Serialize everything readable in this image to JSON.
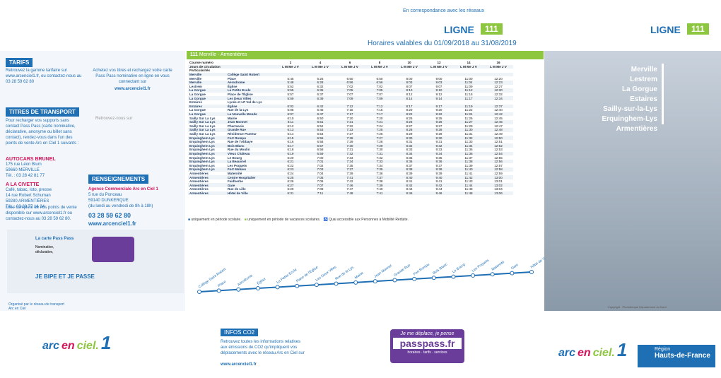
{
  "header": {
    "correspondence": "En correspondance avec les réseaux",
    "ligne": "LIGNE",
    "number": "111",
    "validity": "Horaires valables du 01/09/2018 au 31/08/2019"
  },
  "left": {
    "tarifs_title": "TARIFS",
    "tarifs_text": "Retrouvez la gamme tarifaire sur www.arcenciel1.fr, ou contactez-nous au 03 28 59 62 80",
    "buy_text": "Achetez vos titres et rechargez votre carte Pass Pass nominative en ligne en vous connectant sur",
    "buy_url": "www.arcenciel1.fr",
    "titres_title": "TITRES DE TRANSPORT",
    "titres_text": "Pour recharger vos supports sans contact Pass Pass (carte nominative, déclarative, anonyme ou billet sans contact), rendez-vous dans l'un des points de vente Arc en Ciel 1 suivants :",
    "follow": "Retrouvez-nous sur",
    "agencies": [
      {
        "name": "AUTOCARS BRUNEL",
        "lines": [
          "175 rue Léon Blum",
          "59660 MERVILLE",
          "Tél. : 03 28 42 81 77"
        ]
      },
      {
        "name": "A LA CIVETTE",
        "lines": [
          "Café, tabac, loto, presse",
          "14 rue Robert Schuman",
          "59280 ARMENTIÈRES",
          "Tél. : 03 20 77 14 34"
        ]
      }
    ],
    "renseignements_title": "RENSEIGNEMENTS",
    "agence": [
      "Agence Commerciale Arc en Ciel 1",
      "5 rue du Ponceau",
      "59140 DUNKERQUE",
      "(du lundi au vendredi de 8h à 18h)"
    ],
    "phone": "03 28 59 62 80",
    "web": "www.arcenciel1.fr",
    "points_text": "Liste complète de nos points de vente disponible sur www.arcenciel1.fr ou contactez-nous au 03 28 59 62 80."
  },
  "timetable": {
    "line": "111",
    "route": "Merville - Armentières",
    "course_label": "Course numéro",
    "days_label": "Jours de circulation",
    "particularites": "Particularités",
    "courses": [
      "2",
      "4",
      "6",
      "8",
      "10",
      "12",
      "14",
      "16"
    ],
    "days": [
      "L M Me J V",
      "L M Me J V",
      "L M Me J V",
      "L M Me J V",
      "L M Me J V",
      "L M Me J V",
      "L M Me J V",
      "L M Me J V"
    ],
    "rows": [
      [
        "Merville",
        "Collège Saint Robert",
        "",
        "",
        "",
        "",
        "",
        "",
        "",
        ""
      ],
      [
        "Merville",
        "Place",
        "5:45",
        "6:25",
        "6:50",
        "6:50",
        "8:00",
        "9:00",
        "11:00",
        "12:20"
      ],
      [
        "Merville",
        "Aérodrome",
        "5:48",
        "6:28",
        "6:56",
        "6:56",
        "8:03",
        "9:03",
        "11:04",
        "12:23"
      ],
      [
        "Lestrem",
        "Église",
        "5:52",
        "6:32",
        "7:02",
        "7:02",
        "8:07",
        "9:07",
        "11:09",
        "12:27"
      ],
      [
        "La Gorgue",
        "La Petite Ecole",
        "5:55",
        "6:35",
        "7:05",
        "7:05",
        "8:10",
        "9:10",
        "11:12",
        "12:30"
      ],
      [
        "La Gorgue",
        "Place de l'Église",
        "5:57",
        "6:37",
        "7:07",
        "7:07",
        "8:12",
        "9:12",
        "11:15",
        "12:32"
      ],
      [
        "La Gorgue",
        "Les Deux Villes",
        "5:59",
        "6:39",
        "7:09",
        "7:09",
        "8:14",
        "9:14",
        "11:17",
        "12:34"
      ],
      [
        "Estaires",
        "Lycée et LP Val de Lys",
        "",
        "",
        "",
        "",
        "",
        "",
        "",
        ""
      ],
      [
        "Estaires",
        "Église",
        "6:02",
        "6:42",
        "7:12",
        "7:12",
        "8:17",
        "9:17",
        "11:19",
        "12:37"
      ],
      [
        "La Gorgue",
        "Rue de la Lys",
        "6:05",
        "6:45",
        "7:15",
        "7:15",
        "8:20",
        "9:20",
        "11:22",
        "12:40"
      ],
      [
        "La Gorgue",
        "La Nouvelle Monde",
        "6:07",
        "6:47",
        "7:17",
        "7:17",
        "8:22",
        "9:22",
        "11:24",
        "12:42"
      ],
      [
        "Sailly Sur La Lys",
        "Mairie",
        "6:10",
        "6:50",
        "7:20",
        "7:20",
        "8:25",
        "9:25",
        "11:26",
        "12:45"
      ],
      [
        "Sailly Sur La Lys",
        "Jean Monnet",
        "6:11",
        "6:51",
        "7:21",
        "7:21",
        "8:26",
        "9:26",
        "11:27",
        "12:46"
      ],
      [
        "Sailly Sur La Lys",
        "Pharmacie",
        "6:12",
        "6:52",
        "7:22",
        "7:24",
        "8:27",
        "9:27",
        "11:29",
        "12:47"
      ],
      [
        "Sailly Sur La Lys",
        "Grande Rue",
        "6:13",
        "6:53",
        "7:23",
        "7:25",
        "8:28",
        "9:28",
        "11:30",
        "12:48"
      ],
      [
        "Sailly Sur La Lys",
        "Résidence Pasteur",
        "6:14",
        "6:54",
        "7:27",
        "7:26",
        "8:29",
        "9:29",
        "11:31",
        "12:49"
      ],
      [
        "Erquinghem Lys",
        "Fort Rompu",
        "6:15",
        "6:55",
        "7:28",
        "7:27",
        "8:30",
        "9:30",
        "11:32",
        "12:50"
      ],
      [
        "Erquinghem Lys",
        "Rue de l'Abbaye",
        "6:16",
        "6:56",
        "7:29",
        "7:28",
        "8:31",
        "9:31",
        "11:33",
        "12:51"
      ],
      [
        "Erquinghem Lys",
        "Bois Blanc",
        "6:17",
        "6:57",
        "7:30",
        "7:29",
        "8:32",
        "9:32",
        "11:34",
        "12:52"
      ],
      [
        "Erquinghem Lys",
        "Rue du Moulin",
        "6:18",
        "6:58",
        "7:31",
        "7:30",
        "8:33",
        "9:33",
        "11:35",
        "12:53"
      ],
      [
        "Erquinghem Lys",
        "Vieux Château",
        "6:19",
        "6:59",
        "7:32",
        "7:31",
        "8:34",
        "9:34",
        "11:36",
        "12:54"
      ],
      [
        "Erquinghem Lys",
        "Le Bourg",
        "6:20",
        "7:00",
        "7:33",
        "7:32",
        "8:35",
        "9:35",
        "11:37",
        "12:55"
      ],
      [
        "Erquinghem Lys",
        "La Beauvrel",
        "6:21",
        "7:01",
        "7:34",
        "7:33",
        "8:36",
        "9:36",
        "11:38",
        "12:56"
      ],
      [
        "Erquinghem Lys",
        "Les Poquets",
        "6:22",
        "7:02",
        "7:35",
        "7:34",
        "8:37",
        "9:37",
        "11:39",
        "12:57"
      ],
      [
        "Erquinghem Lys",
        "Fort Mahieu",
        "6:23",
        "7:03",
        "7:37",
        "7:35",
        "8:38",
        "9:38",
        "11:40",
        "12:58"
      ],
      [
        "Armentières",
        "Maternité",
        "6:24",
        "7:04",
        "7:39",
        "7:36",
        "8:39",
        "9:39",
        "11:41",
        "12:59"
      ],
      [
        "Armentières",
        "Centre Hospitalier",
        "6:25",
        "7:05",
        "7:41",
        "7:37",
        "8:40",
        "9:40",
        "11:42",
        "13:00"
      ],
      [
        "Armentières",
        "Faidherbe",
        "6:26",
        "7:06",
        "7:42",
        "7:38",
        "8:41",
        "9:41",
        "11:43",
        "13:01"
      ],
      [
        "Armentières",
        "Gare",
        "6:27",
        "7:07",
        "7:46",
        "7:39",
        "8:42",
        "9:42",
        "11:44",
        "13:02"
      ],
      [
        "Armentières",
        "Rue de Lille",
        "6:29",
        "7:09",
        "7:47",
        "7:40",
        "8:44",
        "9:44",
        "11:46",
        "13:04"
      ],
      [
        "Armentières",
        "Hôtel de Ville",
        "6:31",
        "7:11",
        "7:48",
        "7:41",
        "8:46",
        "9:46",
        "11:48",
        "13:06"
      ]
    ],
    "legend_school": "uniquement en période scolaire.",
    "legend_holiday": "uniquement en période de vacances scolaires.",
    "legend_access": "Quai accessible aux Personnes à Mobilité Réduite."
  },
  "map": {
    "stops": [
      "Collège Saint Robert",
      "Place",
      "Aérodrome",
      "Église",
      "La Petite Ecole",
      "Place de l'Église",
      "Les Deux Villes",
      "Rue de la Lys",
      "Mairie",
      "Jean Monnet",
      "Grande Rue",
      "Fort Rompu",
      "Bois Blanc",
      "Le Bourg",
      "Les Poquets",
      "Maternité",
      "Gare",
      "Hôtel de Ville"
    ]
  },
  "passpass": {
    "title": "La carte Pass Pass",
    "line1": "Nominative,",
    "line2": "déclarative,",
    "slogan": "JE BIPE ET JE PASSE"
  },
  "organise": "Organisé par le réseau de transport Arc en Ciel",
  "co2": {
    "title": "INFOS CO2",
    "text": "Retrouvez toutes les informations relatives aux émissions de CO2 qu'impliquent vos déplacements avec le réseau Arc en Ciel sur",
    "url": "www.arcenciel1.fr"
  },
  "pp_banner": {
    "line": "Je me déplace, je pense",
    "site": "passpass.fr",
    "sub": "horaires · tarifs · services"
  },
  "brand": {
    "arc": "arc",
    "en": "en",
    "ciel": "ciel.",
    "num": "1"
  },
  "cover": {
    "stops": [
      "Merville",
      "Lestrem",
      "La Gorgue",
      "Estaires",
      "Sailly-sur-la-Lys",
      "Erquinghem-Lys",
      "Armentières"
    ]
  },
  "region": {
    "top": "Région",
    "name": "Hauts-de-France"
  },
  "credit": "Copyright : Photothèque Département du Nord"
}
